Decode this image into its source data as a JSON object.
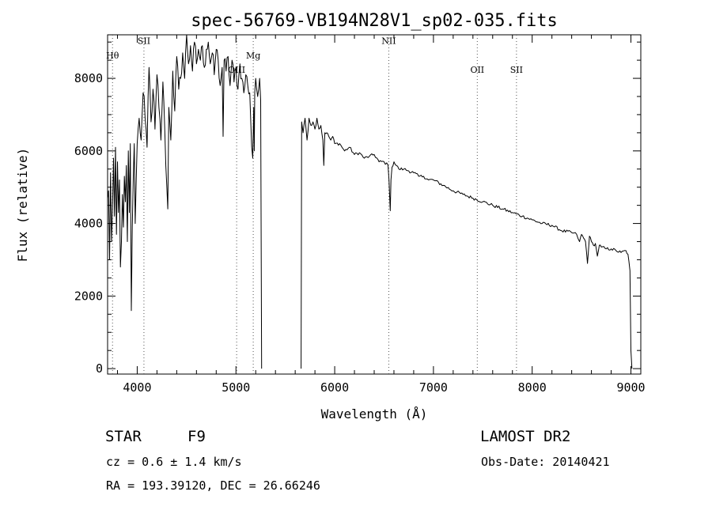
{
  "chart_data": {
    "type": "line",
    "title": "spec-56769-VB194N28V1_sp02-035.fits",
    "xlabel": "Wavelength (Å)",
    "ylabel": "Flux (relative)",
    "xlim": [
      3700,
      9100
    ],
    "ylim": [
      -150,
      9200
    ],
    "x_ticks": [
      4000,
      5000,
      6000,
      7000,
      8000,
      9000
    ],
    "x_tick_labels": [
      "4000",
      "5000",
      "6000",
      "7000",
      "8000",
      "9000"
    ],
    "y_ticks": [
      0,
      2000,
      4000,
      6000,
      8000
    ],
    "y_tick_labels": [
      "0",
      "2000",
      "4000",
      "6000",
      "8000"
    ],
    "series": [
      {
        "color": "#000000",
        "segments": [
          {
            "x": [
              3700,
              3710,
              3720,
              3730,
              3740,
              3750,
              3760,
              3770,
              3780,
              3790,
              3800,
              3810,
              3820,
              3830,
              3840,
              3850,
              3860,
              3870,
              3880,
              3890,
              3900,
              3910,
              3920,
              3930,
              3940,
              3950,
              3960,
              3970,
              3980,
              3990,
              4000,
              4020,
              4040,
              4060,
              4080,
              4100,
              4110,
              4120,
              4140,
              4160,
              4180,
              4200,
              4220,
              4240,
              4260,
              4280,
              4300,
              4310,
              4320,
              4340,
              4360,
              4380,
              4400,
              4420,
              4440,
              4460,
              4480,
              4500,
              4520,
              4540,
              4560,
              4580,
              4600,
              4620,
              4640,
              4660,
              4680,
              4700,
              4720,
              4740,
              4760,
              4780,
              4800,
              4820,
              4840,
              4860,
              4870,
              4880,
              4900,
              4920,
              4940,
              4960,
              4980,
              5000,
              5020,
              5040,
              5060,
              5080,
              5100,
              5120,
              5140,
              5160,
              5170,
              5180,
              5185,
              5190,
              5200,
              5220,
              5240,
              5250,
              5260
            ],
            "y": [
              4700,
              4900,
              3000,
              5400,
              3500,
              4400,
              5800,
              4200,
              6100,
              3700,
              5700,
              4300,
              5200,
              2800,
              3500,
              4800,
              3900,
              5300,
              4600,
              5600,
              3500,
              6000,
              4300,
              6200,
              1600,
              3900,
              5300,
              6200,
              4000,
              5200,
              6200,
              6900,
              6300,
              7600,
              6900,
              6100,
              7500,
              8300,
              6800,
              7700,
              6600,
              8100,
              7200,
              6300,
              7900,
              6500,
              5000,
              4400,
              7200,
              6300,
              8200,
              7100,
              8600,
              7700,
              8000,
              8700,
              8000,
              9200,
              8400,
              8900,
              8200,
              9000,
              8400,
              8800,
              8500,
              8900,
              8300,
              8800,
              9000,
              8400,
              8700,
              8100,
              8800,
              8500,
              7800,
              8300,
              6400,
              8500,
              8200,
              8600,
              7800,
              8500,
              7900,
              8300,
              7700,
              8400,
              8000,
              7600,
              8100,
              7800,
              7600,
              6100,
              5800,
              7200,
              6000,
              7600,
              8000,
              7500,
              8000,
              7400,
              0
            ]
          },
          {
            "x": [
              5660,
              5665,
              5680,
              5700,
              5720,
              5740,
              5760,
              5780,
              5800,
              5820,
              5840,
              5860,
              5880,
              5890,
              5900,
              5920,
              5940,
              5960,
              5980,
              6000,
              6050,
              6100,
              6150,
              6200,
              6250,
              6300,
              6350,
              6400,
              6450,
              6500,
              6540,
              6550,
              6563,
              6570,
              6580,
              6600,
              6650,
              6700,
              6750,
              6800,
              6850,
              6900,
              6950,
              7000,
              7100,
              7200,
              7300,
              7400,
              7500,
              7600,
              7700,
              7800,
              7900,
              8000,
              8100,
              8200,
              8300,
              8400,
              8450,
              8480,
              8500,
              8520,
              8540,
              8560,
              8580,
              8600,
              8620,
              8640,
              8660,
              8680,
              8700,
              8750,
              8800,
              8850,
              8900,
              8950,
              8970,
              8990,
              9000,
              9010
            ],
            "y": [
              0,
              6800,
              6500,
              6900,
              6300,
              6900,
              6700,
              6800,
              6600,
              6900,
              6600,
              6700,
              6300,
              5600,
              6500,
              6500,
              6400,
              6300,
              6400,
              6200,
              6200,
              6000,
              6100,
              5900,
              5950,
              5800,
              5850,
              5900,
              5700,
              5700,
              5600,
              5200,
              4350,
              5200,
              5550,
              5700,
              5500,
              5500,
              5450,
              5400,
              5300,
              5300,
              5200,
              5200,
              5050,
              4900,
              4800,
              4700,
              4600,
              4500,
              4400,
              4300,
              4200,
              4100,
              4000,
              3950,
              3800,
              3750,
              3700,
              3500,
              3700,
              3600,
              3500,
              2900,
              3650,
              3500,
              3400,
              3450,
              3100,
              3400,
              3350,
              3300,
              3300,
              3250,
              3200,
              3250,
              3150,
              2700,
              500,
              0
            ]
          }
        ]
      }
    ],
    "line_markers": [
      {
        "label": "Hθ",
        "x": 3750,
        "label_y": 8550
      },
      {
        "label": "SII",
        "x": 4068,
        "label_y": 8950
      },
      {
        "label": "OIII",
        "x": 5007,
        "label_y": 8150
      },
      {
        "label": "Mg",
        "x": 5175,
        "label_y": 8550
      },
      {
        "label": "NII",
        "x": 6548,
        "label_y": 8950
      },
      {
        "label": "OII",
        "x": 7444,
        "label_y": 8150
      },
      {
        "label": "SII",
        "x": 7841,
        "label_y": 8150
      }
    ],
    "grid": false,
    "legend": "none"
  },
  "info": {
    "object_class": "STAR",
    "subclass": "F9",
    "redshift": "cz = 0.6 ± 1.4 km/s",
    "coords": "RA = 193.39120, DEC =  26.66246",
    "survey": "LAMOST DR2",
    "obs_date": "Obs-Date: 20140421"
  }
}
